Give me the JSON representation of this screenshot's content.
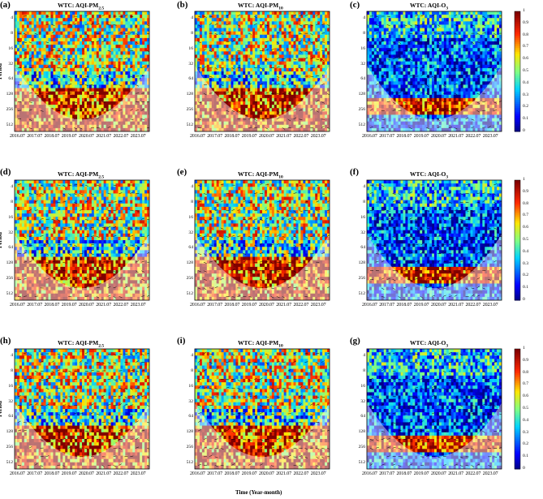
{
  "chart_data": [
    {
      "type": "heatmap",
      "panel": "(a)",
      "title": "WTC: AQI-PM",
      "title_sub": "2.5",
      "ylabel": "Period"
    },
    {
      "type": "heatmap",
      "panel": "(b)",
      "title": "WTC: AQI-PM",
      "title_sub": "10",
      "ylabel": ""
    },
    {
      "type": "heatmap",
      "panel": "(c)",
      "title": "WTC: AQI-O",
      "title_sub": "3",
      "ylabel": ""
    },
    {
      "type": "heatmap",
      "panel": "(d)",
      "title": "WTC: AQI-PM",
      "title_sub": "2.5",
      "ylabel": "Period"
    },
    {
      "type": "heatmap",
      "panel": "(e)",
      "title": "WTC: AQI-PM",
      "title_sub": "10",
      "ylabel": ""
    },
    {
      "type": "heatmap",
      "panel": "(f)",
      "title": "WTC: AQI-O",
      "title_sub": "3",
      "ylabel": ""
    },
    {
      "type": "heatmap",
      "panel": "(h)",
      "title": "WTC: AQI-PM",
      "title_sub": "2.5",
      "ylabel": "Period"
    },
    {
      "type": "heatmap",
      "panel": "(i)",
      "title": "WTC: AQI-PM",
      "title_sub": "10",
      "ylabel": ""
    },
    {
      "type": "heatmap",
      "panel": "(g)",
      "title": "WTC: AQI-O",
      "title_sub": "3",
      "ylabel": ""
    }
  ],
  "yticks": [
    "4",
    "8",
    "16",
    "32",
    "64",
    "128",
    "256",
    "512"
  ],
  "xticks": [
    "2016.07",
    "2017.07",
    "2018.07",
    "2019.07",
    "2020.07",
    "2021.07",
    "2022.07",
    "2023.07"
  ],
  "colorbar_ticks": [
    "0",
    "0.1",
    "0.2",
    "0.3",
    "0.4",
    "0.5",
    "0.6",
    "0.7",
    "0.8",
    "0.9",
    "1"
  ],
  "xlabel": "Time (Year-month)",
  "colors": {
    "low": "#0000a0",
    "mid": "#20d0ff",
    "high": "#ff2000",
    "peak": "#800000"
  }
}
